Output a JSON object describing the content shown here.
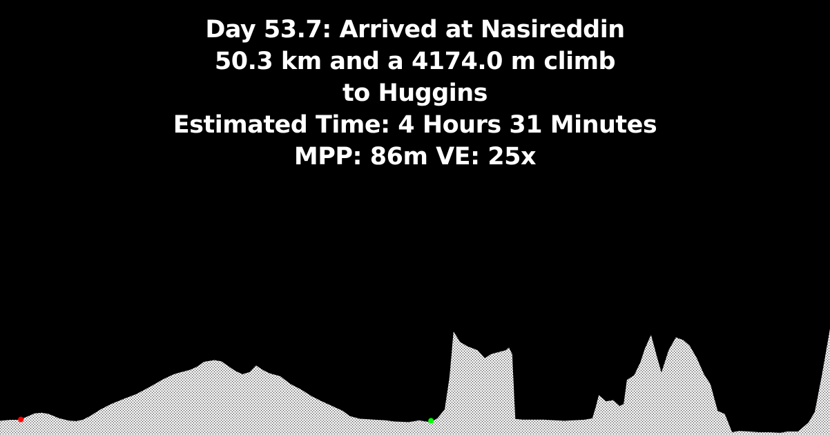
{
  "header": {
    "line1": "Day 53.7: Arrived at Nasireddin",
    "line2": "50.3 km and a 4174.0 m climb",
    "line3": "to Huggins",
    "line4": "Estimated Time: 4 Hours 31 Minutes",
    "line5": "MPP: 86m VE: 25x"
  },
  "colors": {
    "background": "#000000",
    "terrain": "#d9d9d9",
    "text": "#ffffff",
    "start_marker": "#ff0000",
    "current_marker": "#00ff00"
  },
  "chart_data": {
    "type": "area",
    "title": "",
    "xlabel": "",
    "ylabel": "",
    "x_unit": "km",
    "y_unit": "m",
    "xlim": [
      0,
      103.4
    ],
    "ylim": [
      0,
      11000
    ],
    "series": [
      {
        "values": [
          [
            0.0,
            660
          ],
          [
            1.3,
            710
          ],
          [
            2.2,
            710
          ],
          [
            3.0,
            800
          ],
          [
            4.3,
            1010
          ],
          [
            5.2,
            1040
          ],
          [
            6.1,
            980
          ],
          [
            7.3,
            790
          ],
          [
            8.6,
            670
          ],
          [
            9.5,
            650
          ],
          [
            10.3,
            710
          ],
          [
            11.2,
            880
          ],
          [
            12.5,
            1190
          ],
          [
            13.8,
            1440
          ],
          [
            15.5,
            1700
          ],
          [
            16.9,
            1900
          ],
          [
            17.8,
            2070
          ],
          [
            19.0,
            2320
          ],
          [
            20.3,
            2600
          ],
          [
            21.6,
            2830
          ],
          [
            22.4,
            2920
          ],
          [
            23.7,
            3050
          ],
          [
            24.6,
            3200
          ],
          [
            25.4,
            3420
          ],
          [
            26.7,
            3500
          ],
          [
            27.6,
            3440
          ],
          [
            28.5,
            3200
          ],
          [
            29.3,
            3000
          ],
          [
            30.2,
            2840
          ],
          [
            31.1,
            2940
          ],
          [
            31.9,
            3250
          ],
          [
            32.8,
            3030
          ],
          [
            33.6,
            2880
          ],
          [
            34.9,
            2750
          ],
          [
            36.2,
            2380
          ],
          [
            37.5,
            2130
          ],
          [
            38.8,
            1820
          ],
          [
            40.1,
            1570
          ],
          [
            41.4,
            1350
          ],
          [
            42.7,
            1130
          ],
          [
            43.6,
            880
          ],
          [
            44.8,
            760
          ],
          [
            46.6,
            720
          ],
          [
            47.9,
            690
          ],
          [
            49.2,
            630
          ],
          [
            50.9,
            600
          ],
          [
            52.2,
            680
          ],
          [
            53.1,
            630
          ],
          [
            53.7,
            600
          ],
          [
            54.5,
            780
          ],
          [
            55.4,
            1200
          ],
          [
            56.0,
            2720
          ],
          [
            56.5,
            4840
          ],
          [
            57.3,
            4350
          ],
          [
            58.2,
            4150
          ],
          [
            59.5,
            3960
          ],
          [
            60.4,
            3590
          ],
          [
            61.2,
            3780
          ],
          [
            62.1,
            3870
          ],
          [
            63.0,
            3960
          ],
          [
            63.4,
            4090
          ],
          [
            63.8,
            3780
          ],
          [
            64.2,
            750
          ],
          [
            65.1,
            720
          ],
          [
            66.4,
            720
          ],
          [
            67.7,
            720
          ],
          [
            69.0,
            690
          ],
          [
            70.3,
            660
          ],
          [
            71.6,
            690
          ],
          [
            72.9,
            720
          ],
          [
            73.8,
            780
          ],
          [
            74.2,
            1290
          ],
          [
            74.6,
            1860
          ],
          [
            75.5,
            1570
          ],
          [
            76.4,
            1630
          ],
          [
            77.2,
            1350
          ],
          [
            77.7,
            1450
          ],
          [
            78.1,
            2570
          ],
          [
            79.0,
            2790
          ],
          [
            79.8,
            3420
          ],
          [
            80.3,
            4000
          ],
          [
            81.1,
            4680
          ],
          [
            81.9,
            3570
          ],
          [
            82.4,
            2920
          ],
          [
            83.3,
            3960
          ],
          [
            84.2,
            4560
          ],
          [
            85.1,
            4440
          ],
          [
            85.9,
            4180
          ],
          [
            86.8,
            3600
          ],
          [
            87.7,
            2840
          ],
          [
            88.5,
            2380
          ],
          [
            89.4,
            1130
          ],
          [
            90.3,
            980
          ],
          [
            91.2,
            130
          ],
          [
            92.1,
            190
          ],
          [
            93.3,
            160
          ],
          [
            94.6,
            130
          ],
          [
            95.9,
            130
          ],
          [
            97.2,
            100
          ],
          [
            98.1,
            160
          ],
          [
            99.4,
            160
          ],
          [
            100.7,
            570
          ],
          [
            101.5,
            1070
          ],
          [
            102.4,
            2820
          ],
          [
            103.4,
            4970
          ]
        ]
      }
    ],
    "markers": [
      {
        "x": 2.6,
        "y": 660,
        "color": "#ff0000"
      },
      {
        "x": 53.7,
        "y": 600,
        "color": "#00ff00"
      }
    ],
    "grid": false,
    "legend": "none"
  }
}
